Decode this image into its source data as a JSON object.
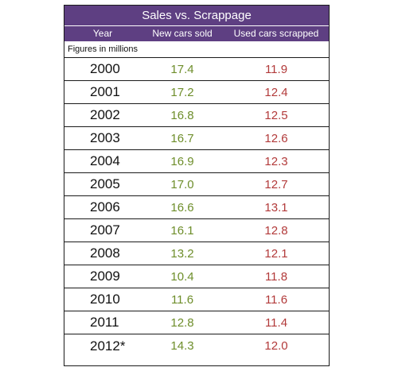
{
  "colors": {
    "header_bg": "#5e3f82",
    "new_cars_text": "#6e8e2b",
    "used_cars_text": "#b23a3a"
  },
  "chart_data": {
    "type": "table",
    "title": "Sales vs. Scrappage",
    "note": "Figures in millions",
    "columns": [
      "Year",
      "New cars sold",
      "Used cars scrapped"
    ],
    "rows": [
      {
        "year": "2000",
        "new": "17.4",
        "used": "11.9"
      },
      {
        "year": "2001",
        "new": "17.2",
        "used": "12.4"
      },
      {
        "year": "2002",
        "new": "16.8",
        "used": "12.5"
      },
      {
        "year": "2003",
        "new": "16.7",
        "used": "12.6"
      },
      {
        "year": "2004",
        "new": "16.9",
        "used": "12.3"
      },
      {
        "year": "2005",
        "new": "17.0",
        "used": "12.7"
      },
      {
        "year": "2006",
        "new": "16.6",
        "used": "13.1"
      },
      {
        "year": "2007",
        "new": "16.1",
        "used": "12.8"
      },
      {
        "year": "2008",
        "new": "13.2",
        "used": "12.1"
      },
      {
        "year": "2009",
        "new": "10.4",
        "used": "11.8"
      },
      {
        "year": "2010",
        "new": "11.6",
        "used": "11.6"
      },
      {
        "year": "2011",
        "new": "12.8",
        "used": "11.4"
      },
      {
        "year": "2012*",
        "new": "14.3",
        "used": "12.0"
      }
    ]
  }
}
